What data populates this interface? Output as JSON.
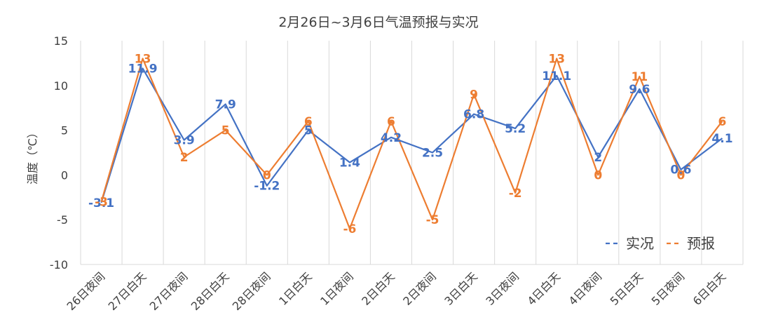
{
  "chart_data": {
    "type": "line",
    "title": "2月26日~3月6日气温预报与实况",
    "xlabel": "",
    "ylabel": "温度（℃）",
    "ylim": [
      -10,
      15
    ],
    "yticks": [
      15,
      10,
      5,
      0,
      -5,
      -10
    ],
    "grid": "vertical",
    "legend_position": "bottom-right",
    "categories": [
      "26日夜间",
      "27日白天",
      "27日夜间",
      "28日白天",
      "28日夜间",
      "1日白天",
      "1日夜间",
      "2日白天",
      "2日夜间",
      "3日白天",
      "3日夜间",
      "4日白天",
      "4日夜间",
      "5日白天",
      "5日夜间",
      "6日白天"
    ],
    "series": [
      {
        "name": "实况",
        "color": "#4472C4",
        "values": [
          -3.1,
          11.9,
          3.9,
          7.9,
          -1.2,
          5,
          1.4,
          4.2,
          2.5,
          6.8,
          5.2,
          11.1,
          2,
          9.6,
          0.6,
          4.1
        ]
      },
      {
        "name": "预报",
        "color": "#ED7D31",
        "values": [
          -3,
          13,
          2,
          5,
          0,
          6,
          -6,
          6,
          -5,
          9,
          -2,
          13,
          0,
          11,
          0,
          6
        ]
      }
    ]
  }
}
